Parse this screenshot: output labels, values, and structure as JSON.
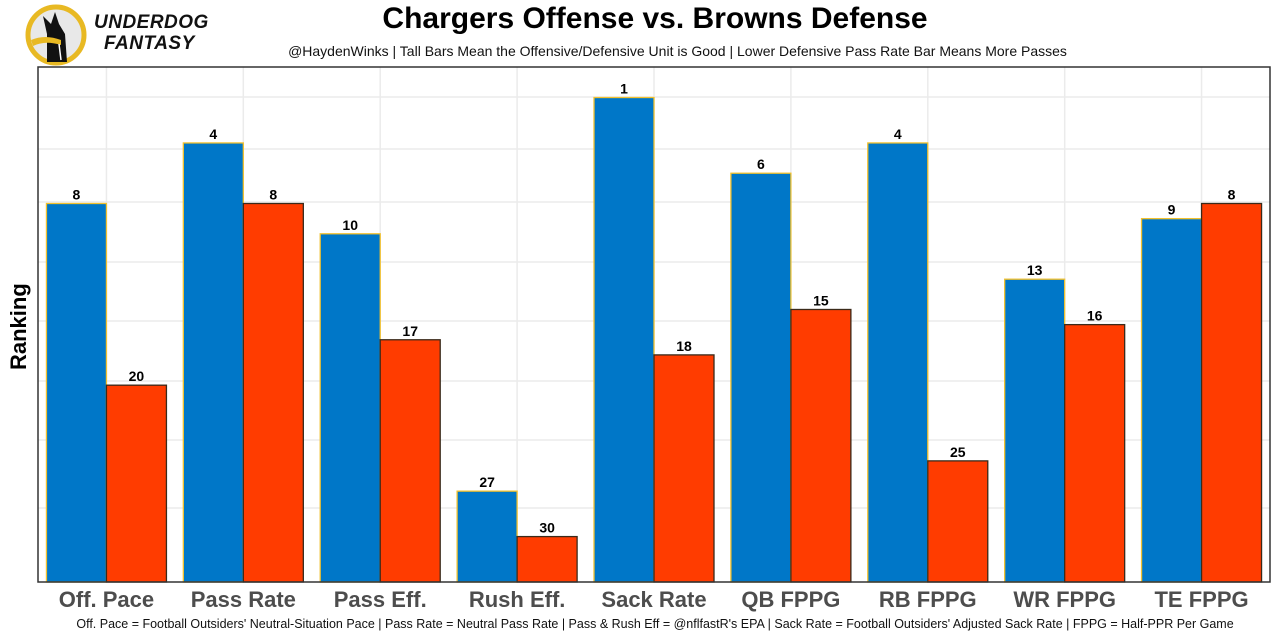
{
  "branding": {
    "line1": "UNDERDOG",
    "line2": "FANTASY"
  },
  "chart_data": {
    "type": "bar",
    "title": "Chargers Offense vs. Browns Defense",
    "subtitle": "@HaydenWinks | Tall Bars Mean the Offensive/Defensive Unit is Good | Lower Defensive Pass Rate Bar Means More Passes",
    "xlabel": "",
    "ylabel": "Ranking",
    "footnote": "Off. Pace = Football Outsiders' Neutral-Situation Pace | Pass Rate = Neutral Pass Rate | Pass & Rush Eff = @nflfastR's EPA | Sack Rate = Football Outsiders' Adjusted Sack Rate | FPPG = Half-PPR Per Game",
    "categories": [
      "Off. Pace",
      "Pass Rate",
      "Pass Eff.",
      "Rush Eff.",
      "Sack Rate",
      "QB FPPG",
      "RB FPPG",
      "WR FPPG",
      "TE FPPG"
    ],
    "series": [
      {
        "name": "Chargers Offense",
        "color": "#0077C8",
        "outline": "#F2C12E",
        "values": [
          8,
          4,
          10,
          27,
          1,
          6,
          4,
          13,
          9
        ]
      },
      {
        "name": "Browns Defense",
        "color": "#FF3C00",
        "outline": "#3A2A1A",
        "values": [
          20,
          8,
          17,
          30,
          18,
          15,
          25,
          16,
          8
        ]
      }
    ],
    "y_scale": "rank (1 = tallest bar)",
    "ylim_rank": [
      32,
      1
    ],
    "grid": true,
    "legend": "none"
  }
}
